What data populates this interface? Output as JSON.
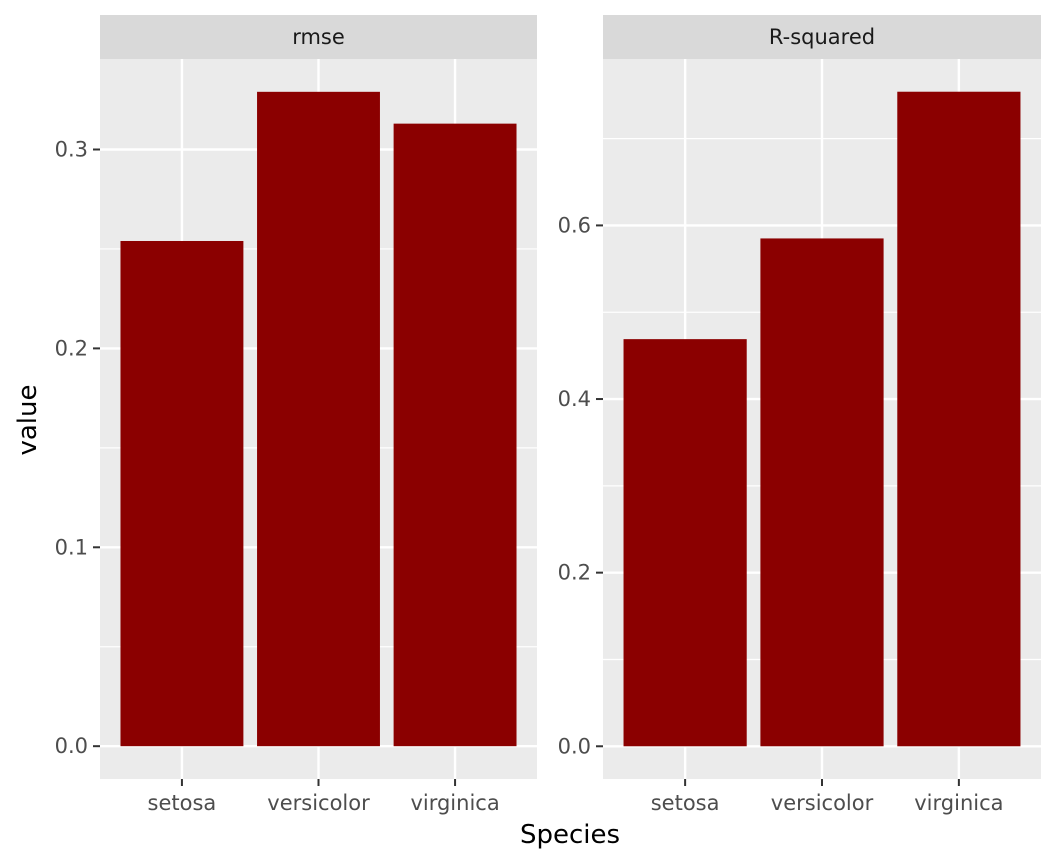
{
  "chart_data": {
    "type": "bar",
    "xlabel": "Species",
    "ylabel": "value",
    "bar_color": "#8B0000",
    "panel_background": "#EBEBEB",
    "strip_background": "#D9D9D9",
    "grid": true,
    "facets": [
      {
        "label": "rmse",
        "categories": [
          "setosa",
          "versicolor",
          "virginica"
        ],
        "values": [
          0.254,
          0.329,
          0.313
        ],
        "ylim": [
          -0.0165,
          0.3455
        ],
        "yticks": [
          0.0,
          0.1,
          0.2,
          0.3
        ],
        "ytick_labels": [
          "0.0",
          "0.1",
          "0.2",
          "0.3"
        ]
      },
      {
        "label": "R-squared",
        "categories": [
          "setosa",
          "versicolor",
          "virginica"
        ],
        "values": [
          0.469,
          0.585,
          0.754
        ],
        "ylim": [
          -0.0377,
          0.7917
        ],
        "yticks": [
          0.0,
          0.2,
          0.4,
          0.6
        ],
        "ytick_labels": [
          "0.0",
          "0.2",
          "0.4",
          "0.6"
        ]
      }
    ]
  }
}
